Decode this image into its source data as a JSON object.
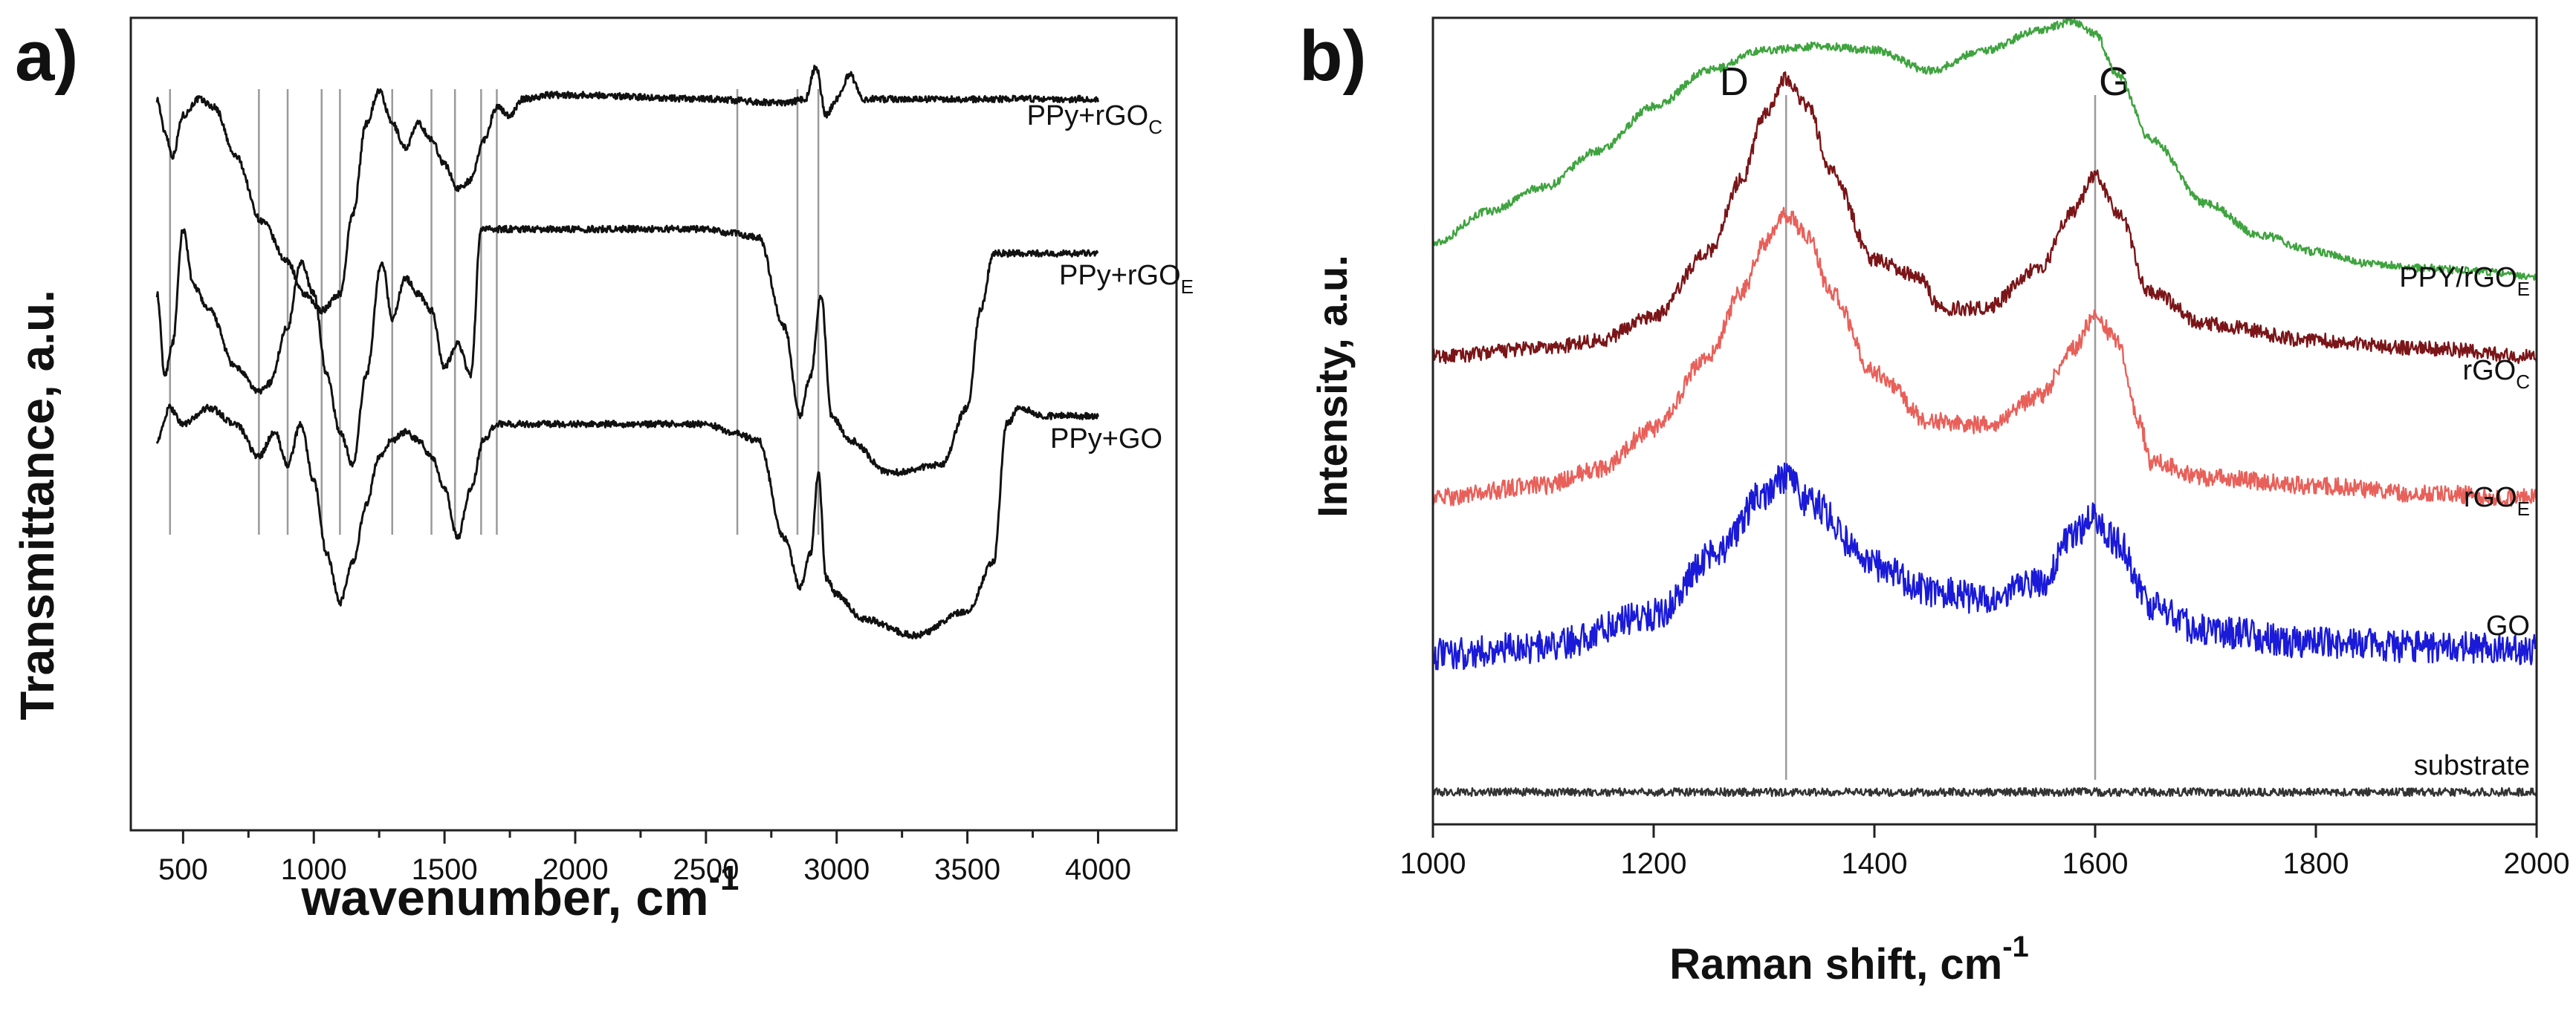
{
  "figure": {
    "background": "#ffffff"
  },
  "chart_data": [
    {
      "panel": "a)",
      "type": "line",
      "title": "",
      "xlabel_main": "wavenumber, cm",
      "xlabel_sup": "-1",
      "ylabel": "Transmittance, a.u.",
      "xlim": [
        300,
        4300
      ],
      "ylim": [
        0,
        10
      ],
      "yticks_shown": false,
      "x_ticks": [
        500,
        1000,
        1500,
        2000,
        2500,
        3000,
        3500,
        4000
      ],
      "x_tick_labels": [
        "500",
        "1000",
        "1500",
        "2000",
        "2500",
        "3000",
        "3500",
        "4000"
      ],
      "reference_lines": [
        450,
        790,
        900,
        1030,
        1100,
        1300,
        1450,
        1540,
        1640,
        1700,
        2620,
        2850,
        2930
      ],
      "series": [
        {
          "name": "PPy+rGOC",
          "label_main": "PPy+rGO",
          "label_sub": "C",
          "color": "#111111",
          "x": [
            400,
            430,
            460,
            500,
            560,
            620,
            700,
            800,
            900,
            960,
            1030,
            1100,
            1150,
            1200,
            1250,
            1300,
            1350,
            1400,
            1450,
            1500,
            1550,
            1600,
            1650,
            1700,
            1750,
            1800,
            1900,
            2000,
            2500,
            2800,
            2880,
            2920,
            2960,
            3000,
            3050,
            3100,
            3500,
            4000
          ],
          "y": [
            9.0,
            8.6,
            8.3,
            8.8,
            9.0,
            8.9,
            8.3,
            7.5,
            7.0,
            6.6,
            6.4,
            6.6,
            7.6,
            8.7,
            9.1,
            8.7,
            8.4,
            8.7,
            8.5,
            8.2,
            7.9,
            8.0,
            8.5,
            8.9,
            8.8,
            9.0,
            9.05,
            9.05,
            9.0,
            8.95,
            9.0,
            9.4,
            8.8,
            9.0,
            9.3,
            9.0,
            9.0,
            9.0
          ]
        },
        {
          "name": "PPy+rGOE",
          "label_main": "PPy+rGO",
          "label_sub": "E",
          "color": "#111111",
          "x": [
            400,
            430,
            460,
            500,
            540,
            600,
            700,
            790,
            830,
            900,
            950,
            1000,
            1050,
            1100,
            1150,
            1200,
            1260,
            1300,
            1350,
            1400,
            1450,
            1500,
            1550,
            1600,
            1640,
            1700,
            2000,
            2500,
            2600,
            2700,
            2800,
            2860,
            2900,
            2940,
            2980,
            3050,
            3200,
            3400,
            3500,
            3550,
            3600,
            3800,
            4000
          ],
          "y": [
            6.6,
            5.6,
            6.0,
            7.4,
            6.7,
            6.4,
            5.7,
            5.4,
            5.5,
            6.2,
            7.0,
            6.6,
            5.6,
            4.9,
            4.5,
            5.6,
            7.0,
            6.3,
            6.8,
            6.6,
            6.4,
            5.7,
            6.0,
            5.6,
            7.4,
            7.4,
            7.4,
            7.4,
            7.35,
            7.3,
            6.2,
            5.1,
            5.6,
            6.6,
            5.1,
            4.8,
            4.4,
            4.5,
            5.2,
            6.4,
            7.1,
            7.1,
            7.1
          ]
        },
        {
          "name": "PPy+GO",
          "label_main": "PPy+GO",
          "label_sub": "",
          "color": "#111111",
          "x": [
            400,
            450,
            500,
            600,
            700,
            790,
            850,
            900,
            950,
            1000,
            1050,
            1100,
            1150,
            1200,
            1250,
            1300,
            1350,
            1400,
            1450,
            1500,
            1550,
            1600,
            1650,
            1700,
            2000,
            2500,
            2600,
            2700,
            2800,
            2860,
            2900,
            2930,
            2960,
            3000,
            3100,
            3300,
            3500,
            3600,
            3650,
            3700,
            3800,
            4000
          ],
          "y": [
            4.8,
            5.2,
            5.0,
            5.2,
            5.0,
            4.6,
            4.9,
            4.5,
            5.0,
            4.3,
            3.4,
            2.8,
            3.3,
            4.0,
            4.6,
            4.8,
            4.9,
            4.8,
            4.6,
            4.2,
            3.6,
            4.2,
            4.8,
            5.0,
            5.0,
            5.0,
            4.9,
            4.8,
            3.6,
            3.0,
            3.4,
            4.4,
            3.1,
            2.9,
            2.6,
            2.4,
            2.7,
            3.3,
            5.0,
            5.2,
            5.1,
            5.1
          ]
        }
      ]
    },
    {
      "panel": "b)",
      "type": "line",
      "title": "",
      "xlabel_main": "Raman shift, cm",
      "xlabel_sup": "-1",
      "ylabel": "Intensity, a.u.",
      "xlim": [
        1000,
        2000
      ],
      "ylim": [
        0,
        10
      ],
      "yticks_shown": false,
      "x_ticks": [
        1000,
        1200,
        1400,
        1600,
        1800,
        2000
      ],
      "x_tick_labels": [
        "1000",
        "1200",
        "1400",
        "1600",
        "1800",
        "2000"
      ],
      "peaks": [
        {
          "label": "D",
          "x": 1320
        },
        {
          "label": "G",
          "x": 1600
        }
      ],
      "series": [
        {
          "name": "PPY/rGOE",
          "label_main": "PPY/rGO",
          "label_sub": "E",
          "color": "#3fa33f",
          "noise": 0.05,
          "x": [
            1000,
            1050,
            1100,
            1150,
            1200,
            1250,
            1300,
            1350,
            1400,
            1450,
            1500,
            1550,
            1580,
            1600,
            1620,
            1650,
            1700,
            1750,
            1800,
            1850,
            1900,
            1950,
            2000
          ],
          "y": [
            7.2,
            7.6,
            7.9,
            8.35,
            8.9,
            9.35,
            9.6,
            9.65,
            9.6,
            9.35,
            9.6,
            9.85,
            9.95,
            9.8,
            9.3,
            8.5,
            7.7,
            7.3,
            7.1,
            6.95,
            6.9,
            6.85,
            6.8
          ]
        },
        {
          "name": "rGOC",
          "label_main": "rGO",
          "label_sub": "C",
          "color": "#7a1518",
          "noise": 0.09,
          "x": [
            1000,
            1100,
            1150,
            1200,
            1250,
            1280,
            1300,
            1320,
            1340,
            1360,
            1400,
            1440,
            1460,
            1500,
            1550,
            1580,
            1600,
            1620,
            1650,
            1700,
            1800,
            1900,
            2000
          ],
          "y": [
            5.8,
            5.9,
            6.0,
            6.3,
            7.1,
            8.0,
            8.8,
            9.25,
            8.9,
            8.1,
            7.0,
            6.8,
            6.4,
            6.4,
            6.9,
            7.6,
            8.05,
            7.6,
            6.6,
            6.2,
            6.0,
            5.9,
            5.8
          ]
        },
        {
          "name": "rGOE",
          "label_main": "rGO",
          "label_sub": "E",
          "color": "#e8605a",
          "noise": 0.11,
          "x": [
            1000,
            1100,
            1150,
            1200,
            1250,
            1280,
            1300,
            1320,
            1340,
            1360,
            1400,
            1450,
            1500,
            1550,
            1580,
            1600,
            1620,
            1640,
            1650,
            1700,
            1800,
            1900,
            2000
          ],
          "y": [
            4.05,
            4.2,
            4.4,
            4.9,
            5.8,
            6.6,
            7.2,
            7.55,
            7.3,
            6.6,
            5.6,
            5.0,
            4.95,
            5.3,
            5.9,
            6.3,
            6.0,
            5.0,
            4.5,
            4.3,
            4.2,
            4.1,
            4.05
          ]
        },
        {
          "name": "GO",
          "label_main": "GO",
          "label_sub": "",
          "color": "#1a1ad8",
          "noise": 0.2,
          "x": [
            1000,
            1100,
            1200,
            1260,
            1300,
            1320,
            1340,
            1400,
            1450,
            1500,
            1550,
            1580,
            1600,
            1620,
            1650,
            1700,
            1800,
            1900,
            2000
          ],
          "y": [
            2.1,
            2.2,
            2.6,
            3.4,
            4.1,
            4.3,
            4.0,
            3.2,
            2.9,
            2.8,
            3.0,
            3.6,
            3.8,
            3.5,
            2.7,
            2.4,
            2.25,
            2.2,
            2.15
          ]
        },
        {
          "name": "substrate",
          "label_main": "substrate",
          "label_sub": "",
          "color": "#333333",
          "noise": 0.05,
          "x": [
            1000,
            1500,
            2000
          ],
          "y": [
            0.4,
            0.4,
            0.4
          ]
        }
      ]
    }
  ]
}
